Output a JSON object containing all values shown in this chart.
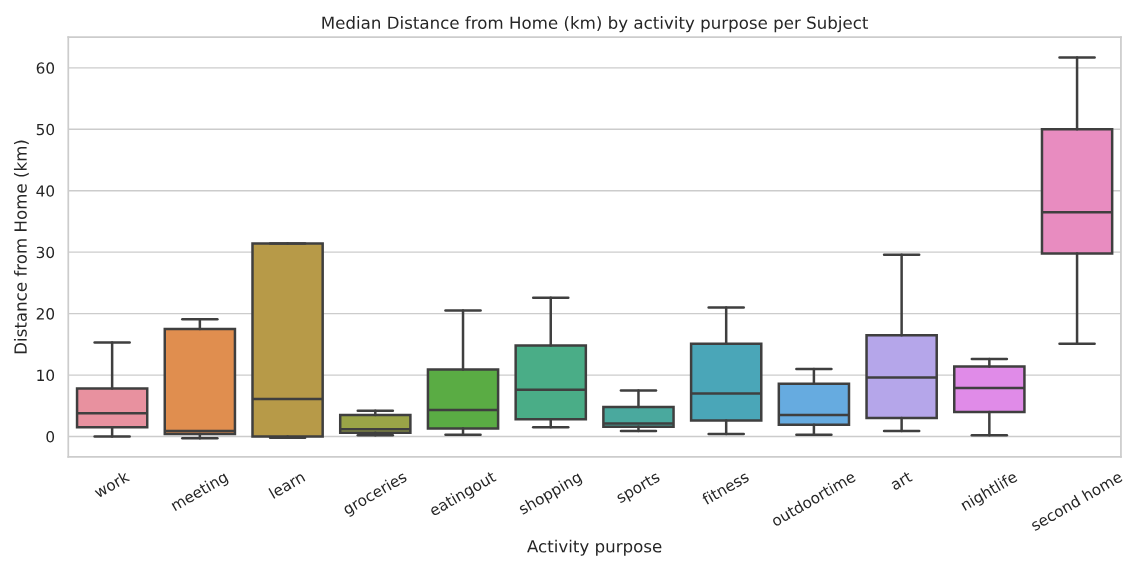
{
  "chart_data": {
    "type": "box",
    "title": "Median Distance from Home (km) by activity purpose per Subject",
    "xlabel": "Activity purpose",
    "ylabel": "Distance from Home (km)",
    "categories": [
      "work",
      "meeting",
      "learn",
      "groceries",
      "eatingout",
      "shopping",
      "sports",
      "fitness",
      "outdoortime",
      "art",
      "nightlife",
      "second home"
    ],
    "colors": [
      "#e8919f",
      "#e08e4f",
      "#b79a48",
      "#9aa447",
      "#5aac44",
      "#4aad87",
      "#4aa99e",
      "#4aa6b8",
      "#66abe0",
      "#b5a6ea",
      "#e08be8",
      "#e88cc0"
    ],
    "boxes": [
      {
        "low": 0,
        "q1": 1.5,
        "median": 3.8,
        "q3": 7.8,
        "high": 15.3
      },
      {
        "low": -0.3,
        "q1": 0.4,
        "median": 0.9,
        "q3": 17.5,
        "high": 19.1
      },
      {
        "low": -0.2,
        "q1": 0,
        "median": 6.1,
        "q3": 31.4,
        "high": 31.4
      },
      {
        "low": 0.2,
        "q1": 0.6,
        "median": 1.2,
        "q3": 3.5,
        "high": 4.2
      },
      {
        "low": 0.3,
        "q1": 1.3,
        "median": 4.3,
        "q3": 10.9,
        "high": 20.5
      },
      {
        "low": 1.5,
        "q1": 2.8,
        "median": 7.6,
        "q3": 14.8,
        "high": 22.6
      },
      {
        "low": 0.9,
        "q1": 1.6,
        "median": 2.1,
        "q3": 4.8,
        "high": 7.5
      },
      {
        "low": 0.4,
        "q1": 2.6,
        "median": 7.0,
        "q3": 15.1,
        "high": 21.0
      },
      {
        "low": 0.3,
        "q1": 1.9,
        "median": 3.5,
        "q3": 8.6,
        "high": 11.0
      },
      {
        "low": 0.9,
        "q1": 3.0,
        "median": 9.6,
        "q3": 16.5,
        "high": 29.6
      },
      {
        "low": 0.2,
        "q1": 4.0,
        "median": 7.9,
        "q3": 11.4,
        "high": 12.6
      },
      {
        "low": 15.1,
        "q1": 29.8,
        "median": 36.5,
        "q3": 50.0,
        "high": 61.7
      }
    ],
    "ylim": [
      -3.3,
      65
    ],
    "yticks": [
      0,
      10,
      20,
      30,
      40,
      50,
      60
    ],
    "grid": "y"
  }
}
